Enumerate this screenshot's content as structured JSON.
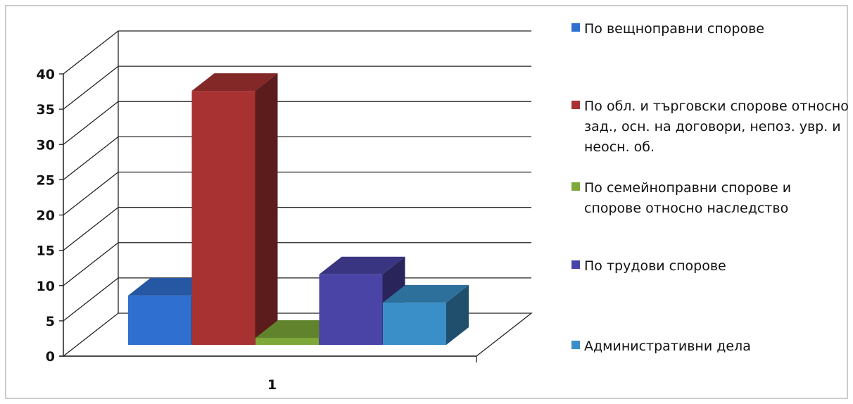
{
  "chart_data": {
    "type": "bar",
    "categories": [
      "1"
    ],
    "series": [
      {
        "name": "По вещноправни спорове",
        "values": [
          7
        ],
        "color": "#2f6fd0"
      },
      {
        "name": "По обл. и търговски спорове относно зад., осн. на договори, непоз. увр. и неосн. об.",
        "values": [
          36
        ],
        "color": "#a83232"
      },
      {
        "name": "По семейноправни спорове и спорове относно наследство",
        "values": [
          1
        ],
        "color": "#7ea83a"
      },
      {
        "name": "По трудови спорове",
        "values": [
          10
        ],
        "color": "#4a44a6"
      },
      {
        "name": "Административни дела",
        "values": [
          6
        ],
        "color": "#3a8fc8"
      }
    ],
    "yticks": [
      "0",
      "5",
      "10",
      "15",
      "20",
      "25",
      "30",
      "35",
      "40"
    ],
    "ylim": [
      0,
      40
    ],
    "grid": true,
    "legend_position": "right",
    "title": "",
    "xlabel": "",
    "ylabel": ""
  }
}
